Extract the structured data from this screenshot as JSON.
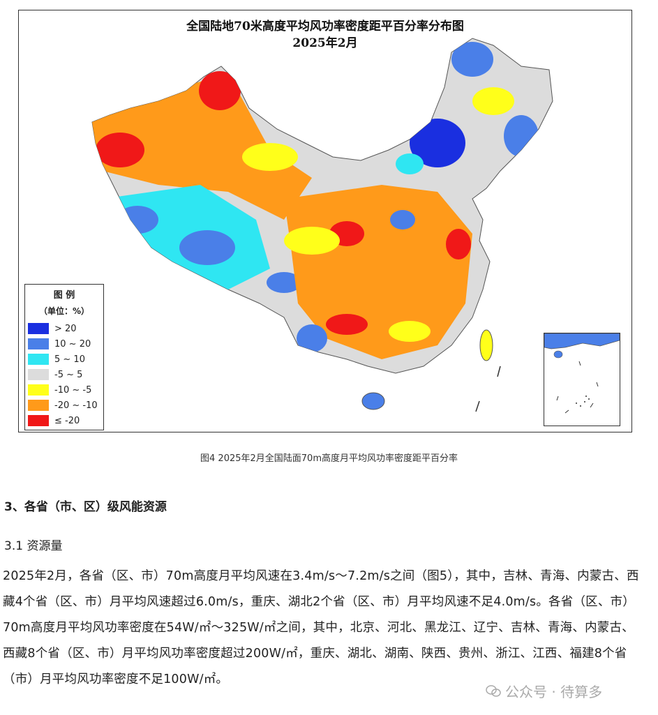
{
  "figure": {
    "title_line1": "全国陆地70米高度平均风功率密度距平百分率分布图",
    "title_line2": "2025年2月",
    "legend": {
      "title": "图  例",
      "unit": "（单位：%）",
      "items": [
        {
          "label": "> 20",
          "color": "#1a2fe0"
        },
        {
          "label": "10 ~ 20",
          "color": "#4a7fe8"
        },
        {
          "label": "5 ~ 10",
          "color": "#2fe6f2"
        },
        {
          "label": "-5 ~ 5",
          "color": "#dcdcdc"
        },
        {
          "label": "-10 ~ -5",
          "color": "#ffff1a"
        },
        {
          "label": "-20 ~ -10",
          "color": "#ff9a1a"
        },
        {
          "label": "≤ -20",
          "color": "#f01818"
        }
      ]
    }
  },
  "caption": "图4 2025年2月全国陆面70m高度月平均风功率密度距平百分率",
  "section_heading": "3、各省（市、区）级风能资源",
  "sub_heading": "3.1 资源量",
  "paragraph": "2025年2月，各省（区、市）70m高度月平均风速在3.4m/s～7.2m/s之间（图5），其中，吉林、青海、内蒙古、西藏4个省（区、市）月平均风速超过6.0m/s，重庆、湖北2个省（区、市）月平均风速不足4.0m/s。各省（区、市）70m高度月平均风功率密度在54W/㎡～325W/㎡之间，其中，北京、河北、黑龙江、辽宁、吉林、青海、内蒙古、西藏8个省（区、市）月平均风功率密度超过200W/㎡，重庆、湖北、湖南、陕西、贵州、浙江、江西、福建8个省（市）月平均风功率密度不足100W/㎡。",
  "watermark": "公众号 · 待算多"
}
